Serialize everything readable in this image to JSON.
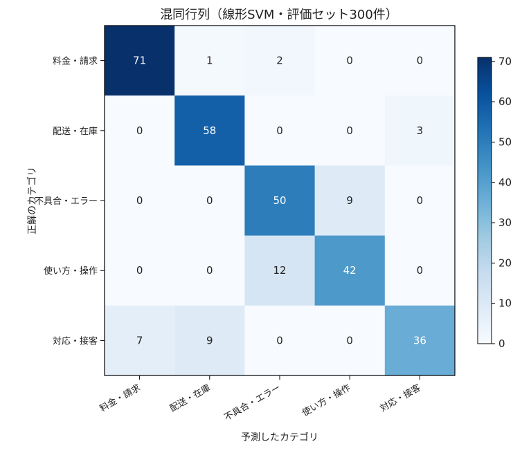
{
  "chart_data": {
    "type": "heatmap",
    "title": "混同行列（線形SVM・評価セット300件）",
    "xlabel": "予測したカテゴリ",
    "ylabel": "正解のカテゴリ",
    "x_categories": [
      "料金・請求",
      "配送・在庫",
      "不具合・エラー",
      "使い方・操作",
      "対応・接客"
    ],
    "y_categories": [
      "料金・請求",
      "配送・在庫",
      "不具合・エラー",
      "使い方・操作",
      "対応・接客"
    ],
    "values": [
      [
        71,
        1,
        2,
        0,
        0
      ],
      [
        0,
        58,
        0,
        0,
        3
      ],
      [
        0,
        0,
        50,
        9,
        0
      ],
      [
        0,
        0,
        12,
        42,
        0
      ],
      [
        7,
        9,
        0,
        0,
        36
      ]
    ],
    "colorscale": "Blues",
    "colorbar": {
      "range": [
        0,
        71
      ],
      "ticks": [
        0,
        10,
        20,
        30,
        40,
        50,
        60,
        70
      ]
    },
    "colors": {
      "low": "#f7fbff",
      "high": "#08306b"
    }
  }
}
